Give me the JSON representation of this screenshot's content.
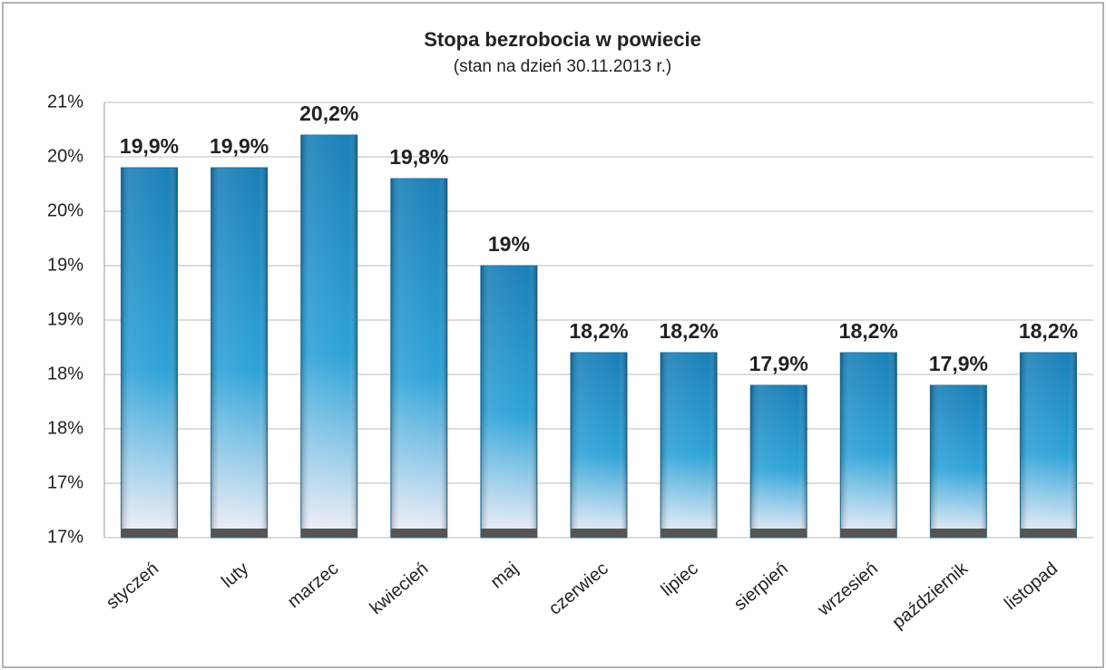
{
  "chart_data": {
    "type": "bar",
    "title": "Stopa bezrobocia w powiecie",
    "subtitle": "(stan na dzień 30.11.2013 r.)",
    "categories": [
      "styczeń",
      "luty",
      "marzec",
      "kwiecień",
      "maj",
      "czerwiec",
      "lipiec",
      "sierpień",
      "wrzesień",
      "październik",
      "listopad"
    ],
    "values": [
      19.9,
      19.9,
      20.2,
      19.8,
      19,
      18.2,
      18.2,
      17.9,
      18.2,
      17.9,
      18.2
    ],
    "value_labels": [
      "19,9%",
      "19,9%",
      "20,2%",
      "19,8%",
      "19%",
      "18,2%",
      "18,2%",
      "17,9%",
      "18,2%",
      "17,9%",
      "18,2%"
    ],
    "color": "#1f8fcc",
    "ylim": [
      16.5,
      20.5
    ],
    "yticks": [
      {
        "value": 16.5,
        "label": "17%"
      },
      {
        "value": 17,
        "label": "17%"
      },
      {
        "value": 17.5,
        "label": "18%"
      },
      {
        "value": 18,
        "label": "18%"
      },
      {
        "value": 18.5,
        "label": "19%"
      },
      {
        "value": 19,
        "label": "19%"
      },
      {
        "value": 19.5,
        "label": "20%"
      },
      {
        "value": 20,
        "label": "20%"
      },
      {
        "value": 20.5,
        "label": "21%"
      }
    ],
    "grid": true
  }
}
